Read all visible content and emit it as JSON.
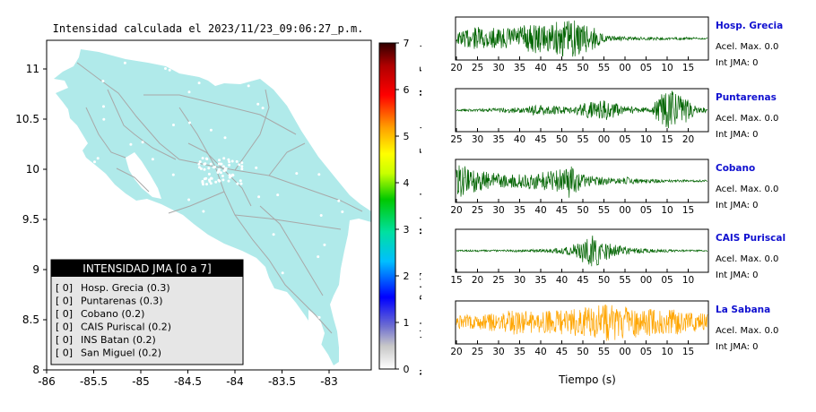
{
  "map": {
    "title": "Intensidad calculada el 2023/11/23_09:06:27_p.m.",
    "x_ticks": [
      "-86",
      "-85.5",
      "-85",
      "-84.5",
      "-84",
      "-83.5",
      "-83"
    ],
    "y_ticks": [
      "11",
      "10.5",
      "10",
      "9.5",
      "9",
      "8.5",
      "8"
    ],
    "land_color": "#b0eaea",
    "water_color": "#ffffff",
    "road_color": "#a8a8a8"
  },
  "legend": {
    "title": "INTENSIDAD JMA [0 a 7]",
    "items": [
      {
        "code": "[ 0]",
        "label": "Hosp. Grecia (0.3)"
      },
      {
        "code": "[ 0]",
        "label": "Puntarenas (0.3)"
      },
      {
        "code": "[ 0]",
        "label": "Cobano (0.2)"
      },
      {
        "code": "[ 0]",
        "label": "CAIS Puriscal (0.2)"
      },
      {
        "code": "[ 0]",
        "label": "INS Batan (0.2)"
      },
      {
        "code": "[ 0]",
        "label": "San Miguel (0.2)"
      }
    ]
  },
  "colorbar": {
    "ticks": [
      "7",
      "6",
      "5",
      "4",
      "3",
      "2",
      "1",
      "0"
    ],
    "labels": [
      "Muy Fuerte",
      "Fuerte",
      "Moderado",
      "Debil",
      "No sentido"
    ]
  },
  "chart_data": [
    {
      "type": "line",
      "name": "Hosp. Grecia",
      "color": "#006400",
      "x_ticks": [
        "20",
        "25",
        "30",
        "35",
        "40",
        "45",
        "50",
        "55",
        "00",
        "05",
        "10",
        "15"
      ],
      "accel_label": "Acel. Max. 0.0",
      "int_label": "Int JMA: 0",
      "envelope": [
        0.3,
        0.5,
        0.6,
        0.55,
        0.5,
        0.6,
        0.7,
        0.75,
        0.65,
        0.9,
        0.95,
        0.85,
        0.6,
        0.15,
        0.12,
        0.1,
        0.08,
        0.1,
        0.07,
        0.06,
        0.08,
        0.05,
        0.05
      ]
    },
    {
      "type": "line",
      "name": "Puntarenas",
      "color": "#006400",
      "x_ticks": [
        "25",
        "30",
        "35",
        "40",
        "45",
        "50",
        "55",
        "00",
        "05",
        "10",
        "15",
        "20"
      ],
      "accel_label": "Acel. Max. 0.0",
      "int_label": "Int JMA: 0",
      "envelope": [
        0.05,
        0.06,
        0.07,
        0.08,
        0.12,
        0.15,
        0.12,
        0.35,
        0.25,
        0.2,
        0.15,
        0.35,
        0.45,
        0.55,
        0.4,
        0.2,
        0.15,
        0.1,
        0.9,
        1.0,
        0.7,
        0.2,
        0.1
      ]
    },
    {
      "type": "line",
      "name": "Cobano",
      "color": "#006400",
      "x_ticks": [
        "20",
        "25",
        "30",
        "35",
        "40",
        "45",
        "50",
        "55",
        "00",
        "05",
        "10",
        "15"
      ],
      "accel_label": "Acel. Max. 0.0",
      "int_label": "Int JMA: 0",
      "envelope": [
        0.95,
        0.7,
        0.5,
        0.45,
        0.4,
        0.35,
        0.4,
        0.45,
        0.5,
        0.55,
        0.9,
        0.35,
        0.25,
        0.2,
        0.15,
        0.2,
        0.12,
        0.1,
        0.08,
        0.07,
        0.06,
        0.05,
        0.05
      ]
    },
    {
      "type": "line",
      "name": "CAIS Puriscal",
      "color": "#006400",
      "x_ticks": [
        "15",
        "20",
        "25",
        "30",
        "35",
        "40",
        "45",
        "50",
        "55",
        "00",
        "05",
        "10"
      ],
      "accel_label": "Acel. Max. 0.0",
      "int_label": "Int JMA: 0",
      "envelope": [
        0.04,
        0.04,
        0.05,
        0.05,
        0.05,
        0.06,
        0.06,
        0.08,
        0.1,
        0.15,
        0.25,
        0.6,
        0.9,
        0.5,
        0.3,
        0.2,
        0.15,
        0.1,
        0.08,
        0.06,
        0.05,
        0.05,
        0.04
      ]
    },
    {
      "type": "line",
      "name": "La Sabana",
      "color": "#ffa500",
      "x_ticks": [
        "20",
        "25",
        "30",
        "35",
        "40",
        "45",
        "50",
        "55",
        "00",
        "05",
        "10",
        "15"
      ],
      "xlabel": "Tiempo (s)",
      "accel_label": "Acel. Max. 0.0",
      "int_label": "Int JMA: 0",
      "envelope": [
        0.35,
        0.4,
        0.35,
        0.45,
        0.5,
        0.7,
        0.6,
        0.5,
        0.65,
        0.6,
        0.7,
        0.75,
        0.85,
        0.95,
        0.9,
        0.8,
        0.75,
        0.7,
        0.6,
        0.65,
        0.55,
        0.5,
        0.45
      ]
    }
  ]
}
